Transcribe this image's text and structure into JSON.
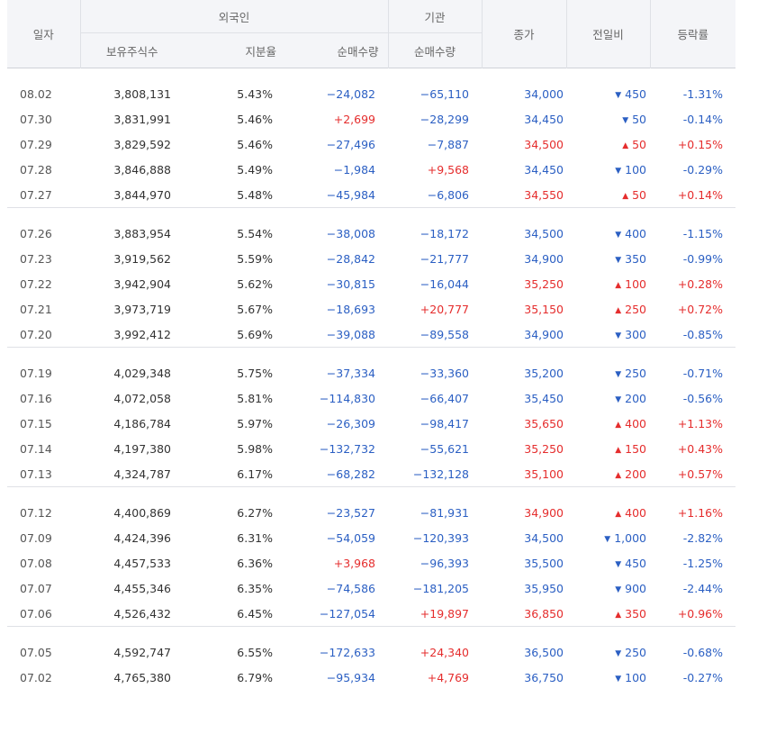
{
  "headers": {
    "date": "일자",
    "foreign": "외국인",
    "institution": "기관",
    "close": "종가",
    "diff": "전일비",
    "rate": "등락률",
    "holdings": "보유주식수",
    "ratio": "지분율",
    "foreign_net": "순매수량",
    "inst_net": "순매수량"
  },
  "colors": {
    "up": "#e52d2d",
    "down": "#2b5fc3"
  },
  "groups": [
    [
      {
        "date": "08.02",
        "holdings": "3,808,131",
        "ratio": "5.43%",
        "foreign_net": "−24,082",
        "inst_net": "−65,110",
        "close": "34,000",
        "dir": "down",
        "diff": "450",
        "rate": "-1.31%"
      },
      {
        "date": "07.30",
        "holdings": "3,831,991",
        "ratio": "5.46%",
        "foreign_net": "+2,699",
        "inst_net": "−28,299",
        "close": "34,450",
        "dir": "down",
        "diff": "50",
        "rate": "-0.14%"
      },
      {
        "date": "07.29",
        "holdings": "3,829,592",
        "ratio": "5.46%",
        "foreign_net": "−27,496",
        "inst_net": "−7,887",
        "close": "34,500",
        "dir": "up",
        "diff": "50",
        "rate": "+0.15%"
      },
      {
        "date": "07.28",
        "holdings": "3,846,888",
        "ratio": "5.49%",
        "foreign_net": "−1,984",
        "inst_net": "+9,568",
        "close": "34,450",
        "dir": "down",
        "diff": "100",
        "rate": "-0.29%"
      },
      {
        "date": "07.27",
        "holdings": "3,844,970",
        "ratio": "5.48%",
        "foreign_net": "−45,984",
        "inst_net": "−6,806",
        "close": "34,550",
        "dir": "up",
        "diff": "50",
        "rate": "+0.14%"
      }
    ],
    [
      {
        "date": "07.26",
        "holdings": "3,883,954",
        "ratio": "5.54%",
        "foreign_net": "−38,008",
        "inst_net": "−18,172",
        "close": "34,500",
        "dir": "down",
        "diff": "400",
        "rate": "-1.15%"
      },
      {
        "date": "07.23",
        "holdings": "3,919,562",
        "ratio": "5.59%",
        "foreign_net": "−28,842",
        "inst_net": "−21,777",
        "close": "34,900",
        "dir": "down",
        "diff": "350",
        "rate": "-0.99%"
      },
      {
        "date": "07.22",
        "holdings": "3,942,904",
        "ratio": "5.62%",
        "foreign_net": "−30,815",
        "inst_net": "−16,044",
        "close": "35,250",
        "dir": "up",
        "diff": "100",
        "rate": "+0.28%"
      },
      {
        "date": "07.21",
        "holdings": "3,973,719",
        "ratio": "5.67%",
        "foreign_net": "−18,693",
        "inst_net": "+20,777",
        "close": "35,150",
        "dir": "up",
        "diff": "250",
        "rate": "+0.72%"
      },
      {
        "date": "07.20",
        "holdings": "3,992,412",
        "ratio": "5.69%",
        "foreign_net": "−39,088",
        "inst_net": "−89,558",
        "close": "34,900",
        "dir": "down",
        "diff": "300",
        "rate": "-0.85%"
      }
    ],
    [
      {
        "date": "07.19",
        "holdings": "4,029,348",
        "ratio": "5.75%",
        "foreign_net": "−37,334",
        "inst_net": "−33,360",
        "close": "35,200",
        "dir": "down",
        "diff": "250",
        "rate": "-0.71%"
      },
      {
        "date": "07.16",
        "holdings": "4,072,058",
        "ratio": "5.81%",
        "foreign_net": "−114,830",
        "inst_net": "−66,407",
        "close": "35,450",
        "dir": "down",
        "diff": "200",
        "rate": "-0.56%"
      },
      {
        "date": "07.15",
        "holdings": "4,186,784",
        "ratio": "5.97%",
        "foreign_net": "−26,309",
        "inst_net": "−98,417",
        "close": "35,650",
        "dir": "up",
        "diff": "400",
        "rate": "+1.13%"
      },
      {
        "date": "07.14",
        "holdings": "4,197,380",
        "ratio": "5.98%",
        "foreign_net": "−132,732",
        "inst_net": "−55,621",
        "close": "35,250",
        "dir": "up",
        "diff": "150",
        "rate": "+0.43%"
      },
      {
        "date": "07.13",
        "holdings": "4,324,787",
        "ratio": "6.17%",
        "foreign_net": "−68,282",
        "inst_net": "−132,128",
        "close": "35,100",
        "dir": "up",
        "diff": "200",
        "rate": "+0.57%"
      }
    ],
    [
      {
        "date": "07.12",
        "holdings": "4,400,869",
        "ratio": "6.27%",
        "foreign_net": "−23,527",
        "inst_net": "−81,931",
        "close": "34,900",
        "dir": "up",
        "diff": "400",
        "rate": "+1.16%"
      },
      {
        "date": "07.09",
        "holdings": "4,424,396",
        "ratio": "6.31%",
        "foreign_net": "−54,059",
        "inst_net": "−120,393",
        "close": "34,500",
        "dir": "down",
        "diff": "1,000",
        "rate": "-2.82%"
      },
      {
        "date": "07.08",
        "holdings": "4,457,533",
        "ratio": "6.36%",
        "foreign_net": "+3,968",
        "inst_net": "−96,393",
        "close": "35,500",
        "dir": "down",
        "diff": "450",
        "rate": "-1.25%"
      },
      {
        "date": "07.07",
        "holdings": "4,455,346",
        "ratio": "6.35%",
        "foreign_net": "−74,586",
        "inst_net": "−181,205",
        "close": "35,950",
        "dir": "down",
        "diff": "900",
        "rate": "-2.44%"
      },
      {
        "date": "07.06",
        "holdings": "4,526,432",
        "ratio": "6.45%",
        "foreign_net": "−127,054",
        "inst_net": "+19,897",
        "close": "36,850",
        "dir": "up",
        "diff": "350",
        "rate": "+0.96%"
      }
    ],
    [
      {
        "date": "07.05",
        "holdings": "4,592,747",
        "ratio": "6.55%",
        "foreign_net": "−172,633",
        "inst_net": "+24,340",
        "close": "36,500",
        "dir": "down",
        "diff": "250",
        "rate": "-0.68%"
      },
      {
        "date": "07.02",
        "holdings": "4,765,380",
        "ratio": "6.79%",
        "foreign_net": "−95,934",
        "inst_net": "+4,769",
        "close": "36,750",
        "dir": "down",
        "diff": "100",
        "rate": "-0.27%"
      }
    ]
  ]
}
